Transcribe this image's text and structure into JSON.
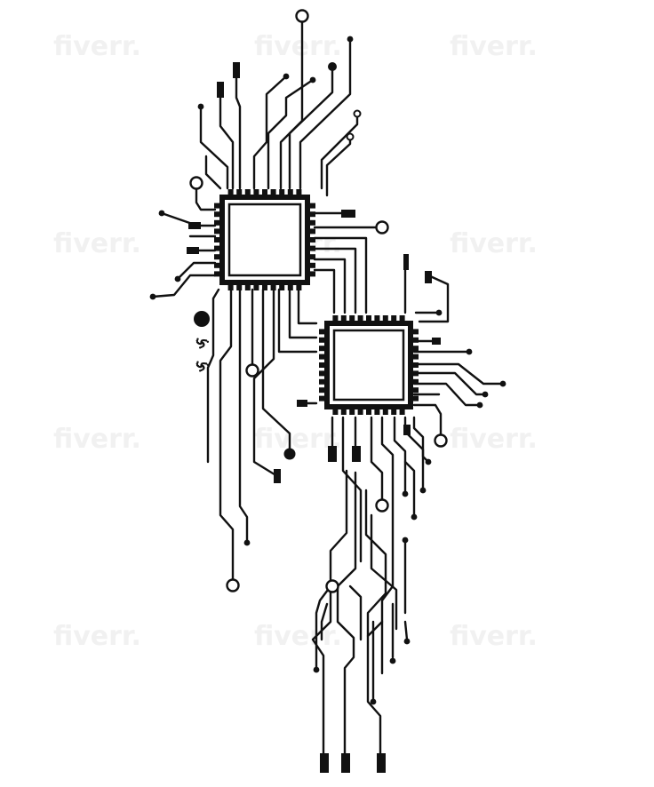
{
  "colors": {
    "trace": "#111111",
    "background": "#ffffff",
    "watermark": "#f1f1f1"
  },
  "watermark": {
    "text": "fiverr."
  },
  "figure": {
    "icon": "circuit-board-chips-icon"
  }
}
